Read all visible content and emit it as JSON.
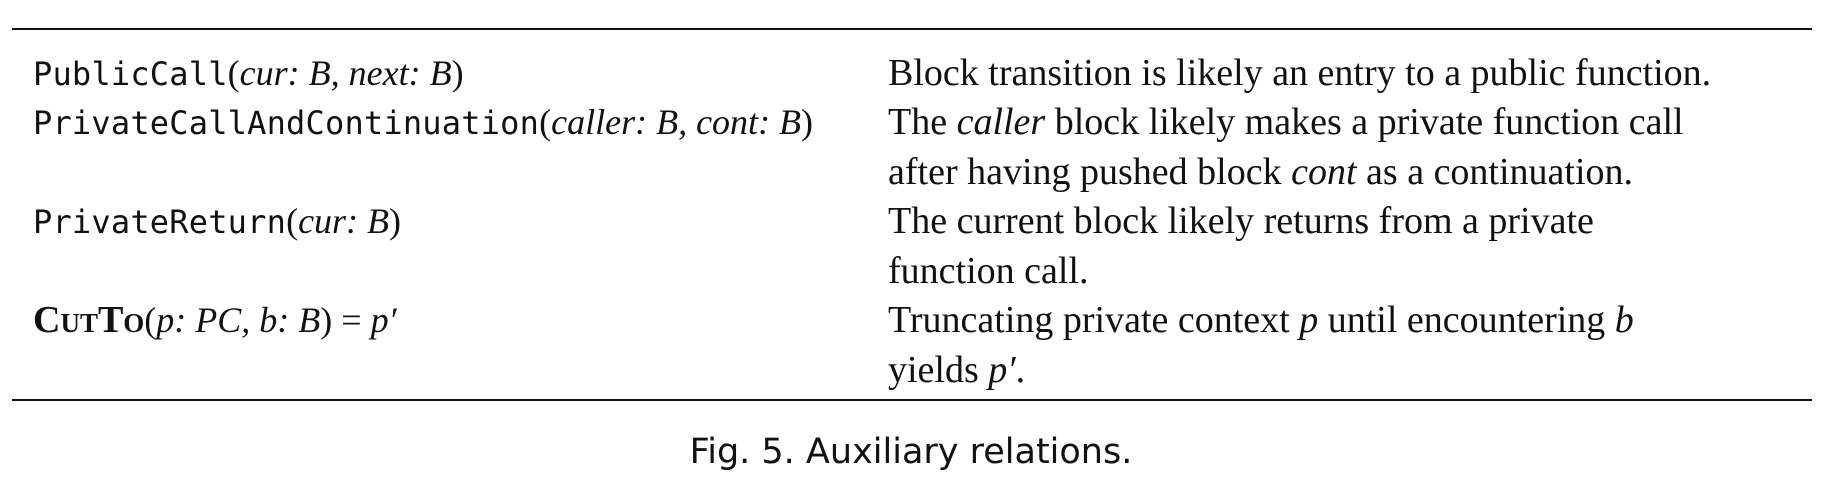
{
  "table": {
    "rows": [
      {
        "relation": {
          "name": "PublicCall",
          "open": "(",
          "a1_name": "cur",
          "a1_type": ": B, ",
          "a2_name": "next",
          "a2_type": ": B",
          "close": ")"
        },
        "description": {
          "line1": "Block transition is likely an entry to a public function."
        }
      },
      {
        "relation": {
          "name": "PrivateCallAndContinuation",
          "open": "(",
          "a1_name": "caller",
          "a1_type": ": B, ",
          "a2_name": "cont",
          "a2_type": ": B",
          "close": ")"
        },
        "description": {
          "line1_pre": "The ",
          "line1_em": "caller",
          "line1_post": " block likely makes a private function call",
          "line2_pre": "after having pushed block ",
          "line2_em": "cont",
          "line2_post": " as a continuation."
        }
      },
      {
        "relation": {
          "name": "PrivateReturn",
          "open": "(",
          "a1_name": "cur",
          "a1_type": ": B",
          "close": ")"
        },
        "description": {
          "line1": "The current block likely returns from a private",
          "line2": "function call."
        }
      },
      {
        "relation": {
          "name": "CutTo",
          "open": "(",
          "args": "p: PC, b: B",
          "close": ") = ",
          "result": "p′"
        },
        "description": {
          "line1_pre": "Truncating private context ",
          "line1_em1": "p",
          "line1_mid": " until encountering ",
          "line1_em2": "b",
          "line2_pre": "yields ",
          "line2_em": "p′",
          "line2_post": "."
        }
      }
    ]
  },
  "caption": "Fig. 5.  Auxiliary relations."
}
